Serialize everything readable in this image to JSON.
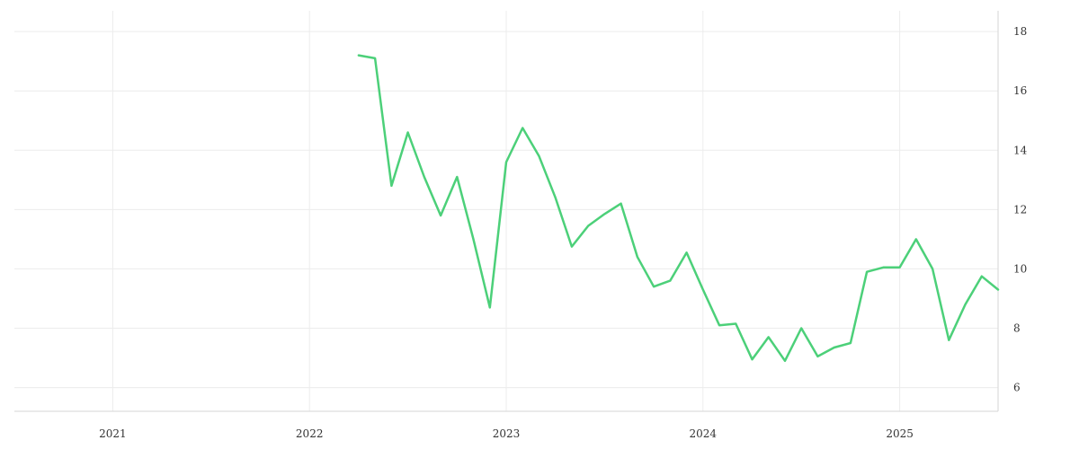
{
  "chart_data": {
    "type": "line",
    "title": "",
    "xlabel": "",
    "ylabel": "",
    "x_ticks": [
      "2021",
      "2022",
      "2023",
      "2024",
      "2025"
    ],
    "y_ticks": [
      6,
      8,
      10,
      12,
      14,
      16,
      18
    ],
    "xlim": [
      "2020-07",
      "2025-07"
    ],
    "ylim": [
      5.2,
      18.7
    ],
    "grid": true,
    "y_axis_position": "right",
    "series": [
      {
        "color": "#4cd079",
        "points": [
          {
            "x": "2022-04",
            "y": 17.2
          },
          {
            "x": "2022-05",
            "y": 17.1
          },
          {
            "x": "2022-06",
            "y": 12.8
          },
          {
            "x": "2022-07",
            "y": 14.6
          },
          {
            "x": "2022-08",
            "y": 13.1
          },
          {
            "x": "2022-09",
            "y": 11.8
          },
          {
            "x": "2022-10",
            "y": 13.1
          },
          {
            "x": "2022-11",
            "y": 11.0
          },
          {
            "x": "2022-12",
            "y": 8.7
          },
          {
            "x": "2023-01",
            "y": 13.6
          },
          {
            "x": "2023-02",
            "y": 14.75
          },
          {
            "x": "2023-03",
            "y": 13.8
          },
          {
            "x": "2023-04",
            "y": 12.4
          },
          {
            "x": "2023-05",
            "y": 10.75
          },
          {
            "x": "2023-06",
            "y": 11.45
          },
          {
            "x": "2023-07",
            "y": 11.85
          },
          {
            "x": "2023-08",
            "y": 12.2
          },
          {
            "x": "2023-09",
            "y": 10.4
          },
          {
            "x": "2023-10",
            "y": 9.4
          },
          {
            "x": "2023-11",
            "y": 9.6
          },
          {
            "x": "2023-12",
            "y": 10.55
          },
          {
            "x": "2024-01",
            "y": 9.3
          },
          {
            "x": "2024-02",
            "y": 8.1
          },
          {
            "x": "2024-03",
            "y": 8.15
          },
          {
            "x": "2024-04",
            "y": 6.95
          },
          {
            "x": "2024-05",
            "y": 7.7
          },
          {
            "x": "2024-06",
            "y": 6.9
          },
          {
            "x": "2024-07",
            "y": 8.0
          },
          {
            "x": "2024-08",
            "y": 7.05
          },
          {
            "x": "2024-09",
            "y": 7.35
          },
          {
            "x": "2024-10",
            "y": 7.5
          },
          {
            "x": "2024-11",
            "y": 9.9
          },
          {
            "x": "2024-12",
            "y": 10.05
          },
          {
            "x": "2025-01",
            "y": 10.05
          },
          {
            "x": "2025-02",
            "y": 11.0
          },
          {
            "x": "2025-03",
            "y": 10.0
          },
          {
            "x": "2025-04",
            "y": 7.6
          },
          {
            "x": "2025-05",
            "y": 8.8
          },
          {
            "x": "2025-06",
            "y": 9.75
          },
          {
            "x": "2025-07",
            "y": 9.3
          }
        ]
      }
    ]
  }
}
